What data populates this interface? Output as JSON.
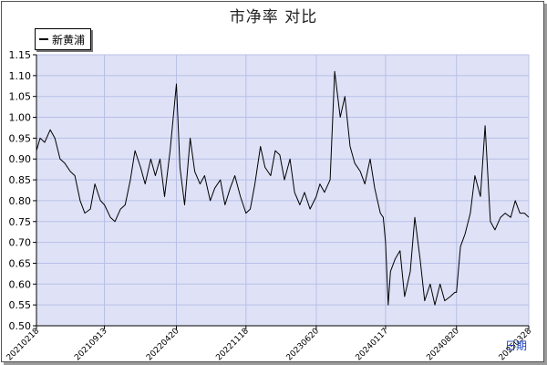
{
  "colors": {
    "plot_background": "#dfe2f7",
    "grid": "#b8bfe6",
    "series": "#000000",
    "xlabel": "#1a3fbf"
  },
  "chart_data": {
    "type": "line",
    "title": "市净率  对比",
    "xlabel": "日期",
    "ylabel": "",
    "ylim": [
      0.5,
      1.15
    ],
    "yticks": [
      "1.15",
      "1.10",
      "1.05",
      "1.00",
      "0.95",
      "0.90",
      "0.85",
      "0.80",
      "0.75",
      "0.70",
      "0.65",
      "0.60",
      "0.55",
      "0.50"
    ],
    "xticks": [
      "20210218",
      "20210913",
      "20220420",
      "20221118",
      "20230620",
      "20240117",
      "20240820",
      "20250328"
    ],
    "grid": true,
    "legend_position": "top-left",
    "series": [
      {
        "name": "新黄浦",
        "points": [
          [
            "20210218",
            0.92
          ],
          [
            "20210301",
            0.95
          ],
          [
            "20210315",
            0.94
          ],
          [
            "20210401",
            0.97
          ],
          [
            "20210415",
            0.95
          ],
          [
            "20210501",
            0.9
          ],
          [
            "20210515",
            0.89
          ],
          [
            "20210601",
            0.87
          ],
          [
            "20210615",
            0.86
          ],
          [
            "20210701",
            0.8
          ],
          [
            "20210715",
            0.77
          ],
          [
            "20210801",
            0.78
          ],
          [
            "20210815",
            0.84
          ],
          [
            "20210901",
            0.8
          ],
          [
            "20210913",
            0.79
          ],
          [
            "20211001",
            0.76
          ],
          [
            "20211015",
            0.75
          ],
          [
            "20211101",
            0.78
          ],
          [
            "20211115",
            0.79
          ],
          [
            "20211201",
            0.85
          ],
          [
            "20211215",
            0.92
          ],
          [
            "20220101",
            0.88
          ],
          [
            "20220115",
            0.84
          ],
          [
            "20220201",
            0.9
          ],
          [
            "20220215",
            0.86
          ],
          [
            "20220301",
            0.9
          ],
          [
            "20220315",
            0.81
          ],
          [
            "20220401",
            0.92
          ],
          [
            "20220420",
            1.08
          ],
          [
            "20220501",
            0.88
          ],
          [
            "20220515",
            0.79
          ],
          [
            "20220601",
            0.95
          ],
          [
            "20220615",
            0.87
          ],
          [
            "20220701",
            0.84
          ],
          [
            "20220715",
            0.86
          ],
          [
            "20220801",
            0.8
          ],
          [
            "20220815",
            0.83
          ],
          [
            "20220901",
            0.85
          ],
          [
            "20220915",
            0.79
          ],
          [
            "20221001",
            0.83
          ],
          [
            "20221015",
            0.86
          ],
          [
            "20221101",
            0.81
          ],
          [
            "20221118",
            0.77
          ],
          [
            "20221201",
            0.78
          ],
          [
            "20221215",
            0.84
          ],
          [
            "20230101",
            0.93
          ],
          [
            "20230115",
            0.88
          ],
          [
            "20230201",
            0.86
          ],
          [
            "20230215",
            0.92
          ],
          [
            "20230301",
            0.91
          ],
          [
            "20230315",
            0.85
          ],
          [
            "20230401",
            0.9
          ],
          [
            "20230415",
            0.82
          ],
          [
            "20230501",
            0.79
          ],
          [
            "20230515",
            0.82
          ],
          [
            "20230601",
            0.78
          ],
          [
            "20230620",
            0.81
          ],
          [
            "20230701",
            0.84
          ],
          [
            "20230715",
            0.82
          ],
          [
            "20230801",
            0.85
          ],
          [
            "20230815",
            1.11
          ],
          [
            "20230901",
            1.0
          ],
          [
            "20230915",
            1.05
          ],
          [
            "20231001",
            0.93
          ],
          [
            "20231015",
            0.89
          ],
          [
            "20231101",
            0.87
          ],
          [
            "20231115",
            0.84
          ],
          [
            "20231201",
            0.9
          ],
          [
            "20231215",
            0.83
          ],
          [
            "20240101",
            0.77
          ],
          [
            "20240110",
            0.76
          ],
          [
            "20240117",
            0.7
          ],
          [
            "20240125",
            0.55
          ],
          [
            "20240201",
            0.63
          ],
          [
            "20240215",
            0.66
          ],
          [
            "20240301",
            0.68
          ],
          [
            "20240315",
            0.57
          ],
          [
            "20240401",
            0.63
          ],
          [
            "20240415",
            0.76
          ],
          [
            "20240501",
            0.66
          ],
          [
            "20240515",
            0.56
          ],
          [
            "20240601",
            0.6
          ],
          [
            "20240615",
            0.55
          ],
          [
            "20240701",
            0.6
          ],
          [
            "20240715",
            0.56
          ],
          [
            "20240801",
            0.57
          ],
          [
            "20240815",
            0.58
          ],
          [
            "20240820",
            0.58
          ],
          [
            "20240901",
            0.69
          ],
          [
            "20240915",
            0.72
          ],
          [
            "20241001",
            0.77
          ],
          [
            "20241015",
            0.86
          ],
          [
            "20241101",
            0.81
          ],
          [
            "20241115",
            0.98
          ],
          [
            "20241201",
            0.75
          ],
          [
            "20241215",
            0.73
          ],
          [
            "20250101",
            0.76
          ],
          [
            "20250115",
            0.77
          ],
          [
            "20250201",
            0.76
          ],
          [
            "20250215",
            0.8
          ],
          [
            "20250301",
            0.77
          ],
          [
            "20250315",
            0.77
          ],
          [
            "20250328",
            0.76
          ]
        ]
      }
    ]
  }
}
